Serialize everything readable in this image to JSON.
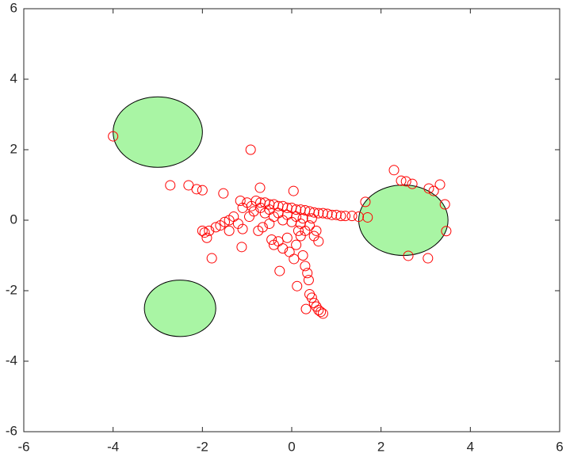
{
  "chart_data": {
    "type": "scatter",
    "xlim": [
      -6,
      6
    ],
    "ylim": [
      -6,
      6
    ],
    "xticks": [
      -6,
      -4,
      -2,
      0,
      2,
      4,
      6
    ],
    "yticks": [
      -6,
      -4,
      -2,
      0,
      2,
      4,
      6
    ],
    "circles": [
      {
        "x": -3,
        "y": 2.5,
        "r": 1,
        "color": "#a9f5a4"
      },
      {
        "x": -2.5,
        "y": -2.5,
        "r": 0.8,
        "color": "#a9f5a4"
      },
      {
        "x": 2.5,
        "y": 0,
        "r": 1,
        "color": "#a9f5a4"
      }
    ],
    "series": [
      {
        "color": "#ff0000",
        "x": [
          -4.0,
          -0.92,
          -2.72,
          -2.31,
          -2.13,
          -2.0,
          -1.53,
          -0.71,
          0.04,
          2.29,
          2.45,
          2.56,
          2.7,
          3.07,
          3.18,
          3.32,
          3.43,
          3.46,
          2.61,
          3.05,
          1.65,
          -0.8,
          -0.7,
          -0.6,
          -0.5,
          -0.4,
          -0.3,
          -0.2,
          -0.1,
          0.0,
          0.1,
          0.2,
          0.3,
          0.4,
          0.5,
          0.6,
          0.7,
          0.8,
          0.9,
          1.0,
          1.1,
          1.2,
          1.35,
          1.5,
          1.7,
          -0.5,
          -0.3,
          -0.1,
          0.1,
          0.25,
          -0.6,
          -0.4,
          -0.2,
          0.0,
          0.2,
          -0.7,
          -0.9,
          -1.1,
          -1.15,
          -1.0,
          -0.85,
          -1.3,
          -1.4,
          -1.5,
          -1.6,
          -1.7,
          -1.85,
          -1.95,
          -2.0,
          -1.9,
          -1.4,
          -1.2,
          -1.1,
          -0.95,
          -0.75,
          -0.65,
          -0.5,
          -0.45,
          -0.4,
          -0.3,
          -0.2,
          -0.1,
          -0.05,
          0.05,
          0.1,
          0.2,
          0.3,
          0.5,
          0.6,
          0.55,
          0.4,
          0.45,
          0.15,
          0.25,
          0.3,
          0.35,
          0.38,
          0.4,
          0.45,
          0.5,
          0.55,
          0.6,
          0.65,
          0.7,
          0.32,
          0.12,
          -0.27,
          -1.12,
          -1.79
        ],
        "y": [
          2.38,
          2.0,
          0.99,
          0.99,
          0.88,
          0.85,
          0.76,
          0.92,
          0.83,
          1.42,
          1.12,
          1.1,
          1.03,
          0.9,
          0.83,
          1.01,
          0.45,
          -0.31,
          -1.01,
          -1.08,
          0.52,
          0.55,
          0.5,
          0.5,
          0.45,
          0.45,
          0.4,
          0.4,
          0.35,
          0.35,
          0.3,
          0.3,
          0.28,
          0.25,
          0.22,
          0.2,
          0.2,
          0.18,
          0.15,
          0.15,
          0.12,
          0.12,
          0.12,
          0.1,
          0.08,
          0.3,
          0.2,
          0.15,
          0.1,
          0.05,
          0.2,
          0.1,
          0.0,
          -0.05,
          -0.1,
          0.35,
          0.4,
          0.35,
          0.55,
          0.5,
          0.25,
          0.1,
          0.0,
          -0.05,
          -0.15,
          -0.2,
          -0.3,
          -0.35,
          -0.3,
          -0.5,
          -0.3,
          -0.1,
          -0.25,
          0.1,
          -0.3,
          -0.2,
          -0.1,
          -0.55,
          -0.7,
          -0.6,
          -0.8,
          -0.5,
          -0.9,
          -1.1,
          -0.7,
          -0.45,
          -0.3,
          -0.45,
          -0.6,
          -0.3,
          -0.15,
          0.05,
          -0.3,
          -1.0,
          -1.3,
          -1.5,
          -1.7,
          -2.1,
          -2.2,
          -2.35,
          -2.45,
          -2.55,
          -2.6,
          -2.65,
          -2.52,
          -1.87,
          -1.44,
          -0.76,
          -1.08
        ]
      }
    ]
  }
}
